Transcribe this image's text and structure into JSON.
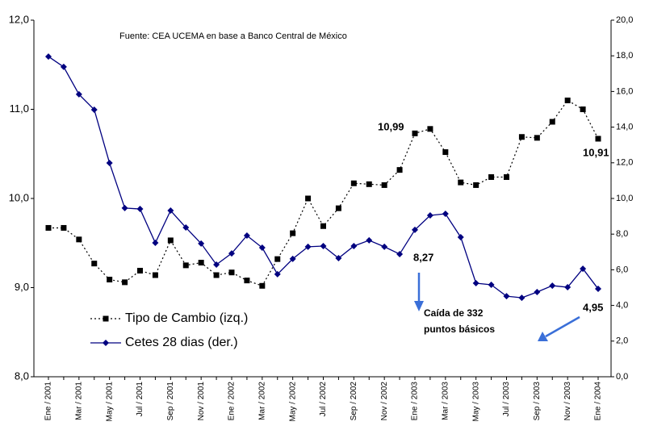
{
  "chart_data": {
    "type": "line",
    "source": "Fuente: CEA UCEMA en base a Banco Central de México",
    "categories": [
      "Ene / 2001",
      null,
      "Mar / 2001",
      null,
      "May / 2001",
      null,
      "Jul / 2001",
      null,
      "Sep / 2001",
      null,
      "Nov / 2001",
      null,
      "Ene / 2002",
      null,
      "Mar / 2002",
      null,
      "May / 2002",
      null,
      "Jul / 2002",
      null,
      "Sep / 2002",
      null,
      "Nov / 2002",
      null,
      "Ene / 2003",
      null,
      "Mar / 2003",
      null,
      "May / 2003",
      null,
      "Jul / 2003",
      null,
      "Sep / 2003",
      null,
      "Nov / 2003",
      null,
      "Ene / 2004"
    ],
    "series": [
      {
        "name": "Tipo de Cambio (izq.)",
        "color": "#000000",
        "axis": "y",
        "values": [
          9.67,
          9.67,
          9.54,
          9.27,
          9.09,
          9.06,
          9.19,
          9.14,
          9.53,
          9.25,
          9.28,
          9.14,
          9.17,
          9.08,
          9.02,
          9.32,
          9.61,
          10.0,
          9.69,
          9.89,
          10.17,
          10.16,
          10.15,
          10.32,
          10.73,
          10.78,
          10.52,
          10.18,
          10.15,
          10.24,
          10.24,
          10.69,
          10.68,
          10.86,
          11.1,
          11.0,
          10.67
        ]
      },
      {
        "name": "Cetes 28 dias (der.)",
        "color": "#000080",
        "axis": "y2",
        "values": [
          17.96,
          17.38,
          15.84,
          14.98,
          11.99,
          9.46,
          9.41,
          7.51,
          9.32,
          8.37,
          7.47,
          6.29,
          6.92,
          7.92,
          7.24,
          5.75,
          6.61,
          7.29,
          7.33,
          6.65,
          7.33,
          7.65,
          7.29,
          6.88,
          8.24,
          9.05,
          9.14,
          7.83,
          5.25,
          5.16,
          4.52,
          4.43,
          4.75,
          5.11,
          5.02,
          6.06,
          4.93
        ]
      }
    ],
    "ylim": [
      8,
      12
    ],
    "yticks": [
      {
        "value": 8,
        "label": "8,0"
      },
      {
        "value": 9,
        "label": "9,0"
      },
      {
        "value": 10,
        "label": "10,0"
      },
      {
        "value": 11,
        "label": "11,0"
      },
      {
        "value": 12,
        "label": "12,0"
      }
    ],
    "y2lim": [
      0,
      20
    ],
    "y2ticks": [
      {
        "value": 0,
        "label": "0,0"
      },
      {
        "value": 2,
        "label": "2,0"
      },
      {
        "value": 4,
        "label": "4,0"
      },
      {
        "value": 6,
        "label": "6,0"
      },
      {
        "value": 8,
        "label": "8,0"
      },
      {
        "value": 10,
        "label": "10,0"
      },
      {
        "value": 12,
        "label": "12,0"
      },
      {
        "value": 14,
        "label": "14,0"
      },
      {
        "value": 16,
        "label": "16,0"
      },
      {
        "value": 18,
        "label": "18,0"
      },
      {
        "value": 20,
        "label": "20,0"
      }
    ],
    "annotations": [
      "10,99",
      "10,91",
      "8,27",
      "4,95",
      "Caída de 332",
      "puntos básicos"
    ],
    "grid": false
  }
}
